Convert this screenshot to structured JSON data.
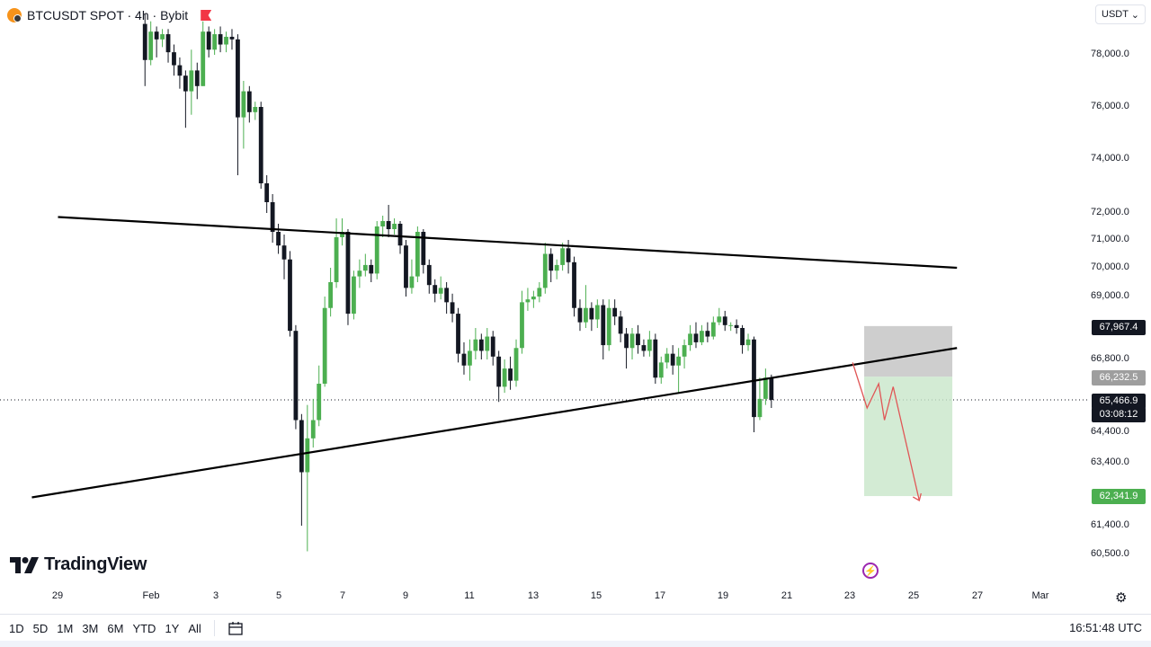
{
  "header": {
    "symbol_line": "BTCUSDT SPOT · 4h · Bybit"
  },
  "currency": {
    "label": "USDT",
    "caret": "⌄"
  },
  "price_axis": {
    "labels": [
      "78,000.0",
      "76,000.0",
      "74,000.0",
      "72,000.0",
      "71,000.0",
      "70,000.0",
      "69,000.0",
      "66,800.0",
      "64,400.0",
      "63,400.0",
      "61,400.0",
      "60,500.0"
    ],
    "tags": {
      "upper_box": "67,967.4",
      "entry": "66,232.5",
      "current": "65,466.9",
      "countdown": "03:08:12",
      "target": "62,341.9"
    }
  },
  "time_axis": {
    "labels": [
      "29",
      "Feb",
      "3",
      "5",
      "7",
      "9",
      "11",
      "13",
      "15",
      "17",
      "19",
      "21",
      "23",
      "25",
      "27",
      "Mar"
    ]
  },
  "brand": {
    "name": "TradingView"
  },
  "bottom": {
    "ranges": [
      "1D",
      "5D",
      "1M",
      "3M",
      "6M",
      "YTD",
      "1Y",
      "All"
    ],
    "clock": "16:51:48 UTC"
  },
  "colors": {
    "up": "#4caf50",
    "down": "#131722",
    "target_box": "#c8e6c9",
    "stop_box": "#c6c6c6",
    "projection": "#e05656",
    "current_tag": "#131722",
    "target_tag": "#4caf50",
    "entry_tag": "#9e9e9e"
  },
  "icons": {
    "coin": "btc-coin-icon",
    "flag": "red-flag-icon",
    "lightning": "lightning-icon",
    "gear": "gear-icon",
    "calendar": "calendar-icon"
  },
  "chart_data": {
    "type": "candlestick",
    "symbol": "BTCUSDT",
    "interval": "4h",
    "exchange": "Bybit",
    "ylim": [
      60000,
      79500
    ],
    "candles": [
      {
        "o": 79200,
        "c": 77800,
        "h": 79600,
        "l": 76800
      },
      {
        "o": 77800,
        "c": 78900,
        "h": 79300,
        "l": 77600
      },
      {
        "o": 78900,
        "c": 78600,
        "h": 79100,
        "l": 77900
      },
      {
        "o": 78600,
        "c": 78800,
        "h": 79000,
        "l": 78300
      },
      {
        "o": 78800,
        "c": 78100,
        "h": 79000,
        "l": 77700
      },
      {
        "o": 78100,
        "c": 77600,
        "h": 78400,
        "l": 77200
      },
      {
        "o": 77600,
        "c": 77200,
        "h": 77900,
        "l": 76700
      },
      {
        "o": 77200,
        "c": 76600,
        "h": 77400,
        "l": 75200
      },
      {
        "o": 76600,
        "c": 77400,
        "h": 78200,
        "l": 75700
      },
      {
        "o": 77400,
        "c": 76800,
        "h": 77700,
        "l": 76300
      },
      {
        "o": 76800,
        "c": 78900,
        "h": 79300,
        "l": 76800
      },
      {
        "o": 78900,
        "c": 78200,
        "h": 79100,
        "l": 77900
      },
      {
        "o": 78200,
        "c": 78800,
        "h": 79000,
        "l": 78000
      },
      {
        "o": 78800,
        "c": 78400,
        "h": 79100,
        "l": 78100
      },
      {
        "o": 78400,
        "c": 78700,
        "h": 78900,
        "l": 78100
      },
      {
        "o": 78700,
        "c": 78600,
        "h": 79000,
        "l": 78200
      },
      {
        "o": 78600,
        "c": 75600,
        "h": 78800,
        "l": 73400
      },
      {
        "o": 75600,
        "c": 76600,
        "h": 77000,
        "l": 74400
      },
      {
        "o": 76600,
        "c": 75800,
        "h": 76800,
        "l": 75400
      },
      {
        "o": 75800,
        "c": 76000,
        "h": 76200,
        "l": 75500
      },
      {
        "o": 76000,
        "c": 73100,
        "h": 76200,
        "l": 72900
      },
      {
        "o": 73100,
        "c": 72400,
        "h": 73400,
        "l": 72000
      },
      {
        "o": 72400,
        "c": 71300,
        "h": 72700,
        "l": 70900
      },
      {
        "o": 71300,
        "c": 70800,
        "h": 71600,
        "l": 70500
      },
      {
        "o": 70800,
        "c": 70300,
        "h": 71200,
        "l": 69600
      },
      {
        "o": 70300,
        "c": 67800,
        "h": 70600,
        "l": 67600
      },
      {
        "o": 67800,
        "c": 64800,
        "h": 68000,
        "l": 64500
      },
      {
        "o": 64800,
        "c": 63100,
        "h": 65000,
        "l": 61400
      },
      {
        "o": 63100,
        "c": 64200,
        "h": 65300,
        "l": 60600
      },
      {
        "o": 64200,
        "c": 64800,
        "h": 65500,
        "l": 63900
      },
      {
        "o": 64800,
        "c": 66000,
        "h": 66600,
        "l": 64600
      },
      {
        "o": 66000,
        "c": 68600,
        "h": 69000,
        "l": 65900
      },
      {
        "o": 68600,
        "c": 69500,
        "h": 70000,
        "l": 68300
      },
      {
        "o": 69500,
        "c": 71100,
        "h": 71800,
        "l": 69300
      },
      {
        "o": 71100,
        "c": 71300,
        "h": 71800,
        "l": 70800
      },
      {
        "o": 71300,
        "c": 68400,
        "h": 71400,
        "l": 68000
      },
      {
        "o": 68400,
        "c": 69700,
        "h": 69900,
        "l": 68200
      },
      {
        "o": 69700,
        "c": 69900,
        "h": 70300,
        "l": 69300
      },
      {
        "o": 69900,
        "c": 70100,
        "h": 70500,
        "l": 69700
      },
      {
        "o": 70100,
        "c": 69800,
        "h": 70300,
        "l": 69500
      },
      {
        "o": 69800,
        "c": 71500,
        "h": 71700,
        "l": 69600
      },
      {
        "o": 71500,
        "c": 71700,
        "h": 71900,
        "l": 71100
      },
      {
        "o": 71700,
        "c": 71400,
        "h": 72300,
        "l": 71100
      },
      {
        "o": 71400,
        "c": 71600,
        "h": 71800,
        "l": 71200
      },
      {
        "o": 71600,
        "c": 70800,
        "h": 71700,
        "l": 70500
      },
      {
        "o": 70800,
        "c": 69300,
        "h": 71000,
        "l": 69000
      },
      {
        "o": 69300,
        "c": 69700,
        "h": 70300,
        "l": 69100
      },
      {
        "o": 69700,
        "c": 71300,
        "h": 71500,
        "l": 69500
      },
      {
        "o": 71300,
        "c": 70100,
        "h": 71400,
        "l": 69800
      },
      {
        "o": 70100,
        "c": 69400,
        "h": 70300,
        "l": 69100
      },
      {
        "o": 69400,
        "c": 69100,
        "h": 69600,
        "l": 68800
      },
      {
        "o": 69100,
        "c": 69300,
        "h": 69700,
        "l": 68900
      },
      {
        "o": 69300,
        "c": 68800,
        "h": 69500,
        "l": 68400
      },
      {
        "o": 68800,
        "c": 68400,
        "h": 69100,
        "l": 68100
      },
      {
        "o": 68400,
        "c": 67000,
        "h": 68600,
        "l": 66700
      },
      {
        "o": 67000,
        "c": 66600,
        "h": 67400,
        "l": 66300
      },
      {
        "o": 66600,
        "c": 67100,
        "h": 67500,
        "l": 66100
      },
      {
        "o": 67100,
        "c": 67500,
        "h": 67900,
        "l": 66800
      },
      {
        "o": 67500,
        "c": 67100,
        "h": 67700,
        "l": 66800
      },
      {
        "o": 67100,
        "c": 67600,
        "h": 67900,
        "l": 66800
      },
      {
        "o": 67600,
        "c": 66900,
        "h": 67800,
        "l": 66600
      },
      {
        "o": 66900,
        "c": 65900,
        "h": 67100,
        "l": 65400
      },
      {
        "o": 65900,
        "c": 66500,
        "h": 66800,
        "l": 65700
      },
      {
        "o": 66500,
        "c": 66100,
        "h": 66900,
        "l": 65800
      },
      {
        "o": 66100,
        "c": 67200,
        "h": 67500,
        "l": 65900
      },
      {
        "o": 67200,
        "c": 68800,
        "h": 69200,
        "l": 67000
      },
      {
        "o": 68800,
        "c": 68900,
        "h": 69300,
        "l": 68500
      },
      {
        "o": 68900,
        "c": 69000,
        "h": 69200,
        "l": 68600
      },
      {
        "o": 69000,
        "c": 69300,
        "h": 69500,
        "l": 68800
      },
      {
        "o": 69300,
        "c": 70500,
        "h": 70900,
        "l": 69100
      },
      {
        "o": 70500,
        "c": 69900,
        "h": 70700,
        "l": 69500
      },
      {
        "o": 69900,
        "c": 70100,
        "h": 70300,
        "l": 69600
      },
      {
        "o": 70100,
        "c": 70700,
        "h": 70900,
        "l": 69900
      },
      {
        "o": 70700,
        "c": 70200,
        "h": 71000,
        "l": 69800
      },
      {
        "o": 70200,
        "c": 68600,
        "h": 70400,
        "l": 68300
      },
      {
        "o": 68600,
        "c": 68100,
        "h": 68900,
        "l": 67800
      },
      {
        "o": 68100,
        "c": 68600,
        "h": 69400,
        "l": 67900
      },
      {
        "o": 68600,
        "c": 68200,
        "h": 68800,
        "l": 67800
      },
      {
        "o": 68200,
        "c": 68700,
        "h": 68900,
        "l": 67900
      },
      {
        "o": 68700,
        "c": 67300,
        "h": 68900,
        "l": 66800
      },
      {
        "o": 67300,
        "c": 68600,
        "h": 68900,
        "l": 67100
      },
      {
        "o": 68600,
        "c": 68300,
        "h": 68900,
        "l": 68000
      },
      {
        "o": 68300,
        "c": 67700,
        "h": 68500,
        "l": 67400
      },
      {
        "o": 67700,
        "c": 67200,
        "h": 67900,
        "l": 66500
      },
      {
        "o": 67200,
        "c": 67700,
        "h": 67900,
        "l": 66800
      },
      {
        "o": 67700,
        "c": 67300,
        "h": 68000,
        "l": 67000
      },
      {
        "o": 67300,
        "c": 67100,
        "h": 67500,
        "l": 66900
      },
      {
        "o": 67100,
        "c": 67500,
        "h": 67800,
        "l": 66900
      },
      {
        "o": 67500,
        "c": 66200,
        "h": 67700,
        "l": 66000
      },
      {
        "o": 66200,
        "c": 66700,
        "h": 66900,
        "l": 66000
      },
      {
        "o": 66700,
        "c": 67000,
        "h": 67200,
        "l": 66500
      },
      {
        "o": 67000,
        "c": 66600,
        "h": 67300,
        "l": 66300
      },
      {
        "o": 66600,
        "c": 66900,
        "h": 67200,
        "l": 65700
      },
      {
        "o": 66900,
        "c": 67300,
        "h": 67500,
        "l": 66500
      },
      {
        "o": 67300,
        "c": 67700,
        "h": 68000,
        "l": 67100
      },
      {
        "o": 67700,
        "c": 67400,
        "h": 68100,
        "l": 67200
      },
      {
        "o": 67400,
        "c": 67800,
        "h": 68000,
        "l": 67300
      },
      {
        "o": 67800,
        "c": 67600,
        "h": 68100,
        "l": 67400
      },
      {
        "o": 67600,
        "c": 68100,
        "h": 68300,
        "l": 67500
      },
      {
        "o": 68100,
        "c": 68300,
        "h": 68600,
        "l": 68000
      },
      {
        "o": 68300,
        "c": 68000,
        "h": 68500,
        "l": 67800
      },
      {
        "o": 68000,
        "c": 68000,
        "h": 68100,
        "l": 67800
      },
      {
        "o": 68000,
        "c": 67900,
        "h": 68200,
        "l": 67700
      },
      {
        "o": 67900,
        "c": 67300,
        "h": 68000,
        "l": 67000
      },
      {
        "o": 67300,
        "c": 67500,
        "h": 67700,
        "l": 67100
      },
      {
        "o": 67500,
        "c": 64900,
        "h": 67600,
        "l": 64400
      },
      {
        "o": 64900,
        "c": 65500,
        "h": 66200,
        "l": 64800
      },
      {
        "o": 65500,
        "c": 66200,
        "h": 66500,
        "l": 65300
      },
      {
        "o": 66200,
        "c": 65466.9,
        "h": 66300,
        "l": 65200
      }
    ],
    "trendlines": [
      {
        "name": "upper",
        "from": {
          "bar": -14.5,
          "price": 71850
        },
        "to": {
          "bar": 140.5,
          "price": 70000
        }
      },
      {
        "name": "lower",
        "from": {
          "bar": -19,
          "price": 62300
        },
        "to": {
          "bar": 140.5,
          "price": 67200
        }
      }
    ],
    "position_box": {
      "start_bar": 124.5,
      "end_bar": 139.7,
      "top": 67967.4,
      "entry": 66232.5,
      "target": 62341.9
    },
    "projection_path": [
      {
        "bar": 122.5,
        "price": 66700
      },
      {
        "bar": 125,
        "price": 65200
      },
      {
        "bar": 127,
        "price": 66000
      },
      {
        "bar": 128,
        "price": 64800
      },
      {
        "bar": 129.5,
        "price": 65900
      },
      {
        "bar": 134,
        "price": 62200
      }
    ],
    "current_price": 65466.9
  }
}
